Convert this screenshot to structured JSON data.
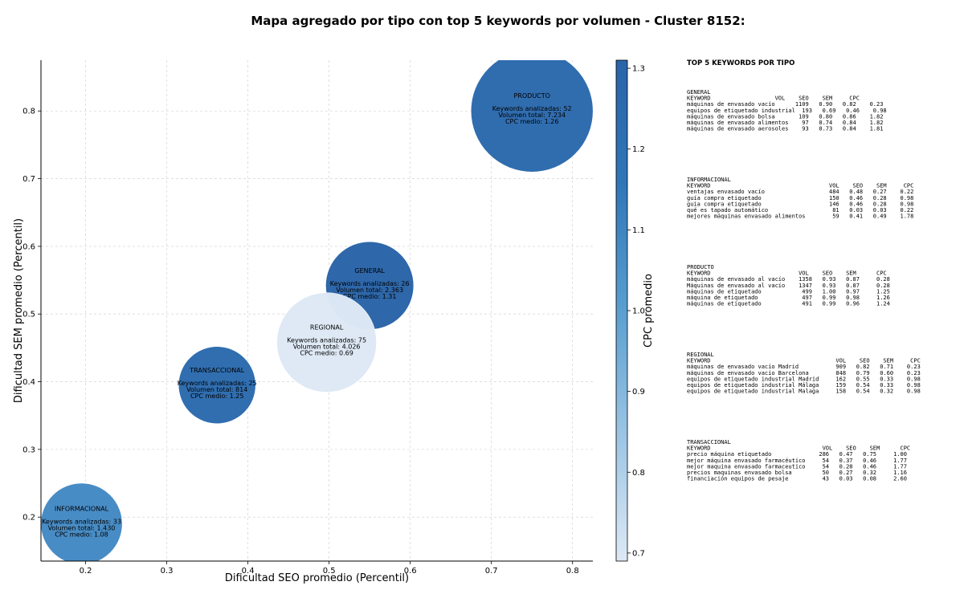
{
  "chart_data": {
    "type": "scatter",
    "title": "Mapa agregado por tipo con top 5 keywords por volumen - Cluster 8152:",
    "xlabel": "Dificultad SEO promedio (Percentil)",
    "ylabel": "Dificultad SEM promedio (Percentil)",
    "xlim": [
      0.145,
      0.825
    ],
    "ylim": [
      0.135,
      0.875
    ],
    "xticks": [
      0.2,
      0.3,
      0.4,
      0.5,
      0.6,
      0.7,
      0.8
    ],
    "yticks": [
      0.2,
      0.3,
      0.4,
      0.5,
      0.6,
      0.7,
      0.8
    ],
    "grid": true,
    "colorbar": {
      "label": "CPC promedio",
      "range": [
        0.69,
        1.31
      ],
      "ticks": [
        0.7,
        0.8,
        0.9,
        1.0,
        1.1,
        1.2,
        1.3
      ],
      "colors": [
        "#dde9f5",
        "#9cc5e4",
        "#5a9fd0",
        "#2f77b8",
        "#2a64a8"
      ]
    },
    "points": [
      {
        "name": "INFORMACIONAL",
        "x": 0.195,
        "y": 0.19,
        "keywords": "Keywords analizadas: 33",
        "volume": "Volumen total: 1.430",
        "cpc_text": "CPC medio: 1.08",
        "cpc": 1.08,
        "volume_value": 1430
      },
      {
        "name": "TRANSACCIONAL",
        "x": 0.362,
        "y": 0.395,
        "keywords": "Keywords analizadas: 25",
        "volume": "Volumen total: 814",
        "cpc_text": "CPC medio: 1.25",
        "cpc": 1.25,
        "volume_value": 814
      },
      {
        "name": "GENERAL",
        "x": 0.55,
        "y": 0.542,
        "keywords": "Keywords analizadas: 26",
        "volume": "Volumen total: 2.363",
        "cpc_text": "CPC medio: 1.31",
        "cpc": 1.31,
        "volume_value": 2363
      },
      {
        "name": "REGIONAL",
        "x": 0.497,
        "y": 0.458,
        "keywords": "Keywords analizadas: 75",
        "volume": "Volumen total: 4.026",
        "cpc_text": "CPC medio: 0.69",
        "cpc": 0.69,
        "volume_value": 4026
      },
      {
        "name": "PRODUCTO",
        "x": 0.75,
        "y": 0.8,
        "keywords": "Keywords analizadas: 52",
        "volume": "Volumen total: 7.234",
        "cpc_text": "CPC medio: 1.26",
        "cpc": 1.26,
        "volume_value": 7234
      }
    ]
  },
  "panel": {
    "title": "TOP 5 KEYWORDS POR TIPO",
    "groups": [
      {
        "name": "GENERAL",
        "header": "KEYWORD                   VOL    SEO    SEM     CPC",
        "rows": [
          "máquinas de envasado vacío      1109   0.90   0.82    0.23",
          "equipos de etiquetado industrial  193   0.69   0.46    0.98",
          "máquinas de envasado bolsa       109   0.80   0.86    1.82",
          "máquinas de envasado alimentos    97   0.74   0.84    1.82",
          "máquinas de envasado aerosoles    93   0.73   0.84    1.81"
        ]
      },
      {
        "name": "INFORMACIONAL",
        "header": "KEYWORD                                   VOL    SEO    SEM     CPC",
        "rows": [
          "ventajas envasado vacío                   484   0.48   0.27    0.22",
          "guía compra etiquetado                    150   0.46   0.28    0.98",
          "guia compra etiquetado                    146   0.46   0.28    0.98",
          "qué es tapado automático                   81   0.03   0.03    0.22",
          "mejores máquinas envasado alimentos        59   0.41   0.49    1.78"
        ]
      },
      {
        "name": "PRODUCTO",
        "header": "KEYWORD                          VOL    SEO    SEM      CPC",
        "rows": [
          "máquinas de envasado al vacío    1358   0.93   0.87     0.28",
          "Máquinas de envasado al vacío    1347   0.93   0.87     0.28",
          "máquinas de etiquetado            499   1.00   0.97     1.25",
          "máquina de etiquetado             497   0.99   0.98     1.26",
          "máquinas de etiquetado            491   0.99   0.96     1.24"
        ]
      },
      {
        "name": "REGIONAL",
        "header": "KEYWORD                                     VOL    SEO    SEM     CPC",
        "rows": [
          "máquinas de envasado vacío Madrid           909   0.82   0.71    0.23",
          "máquinas de envasado vacío Barcelona        848   0.79   0.60    0.23",
          "equipos de etiquetado industrial Madrid     162   0.55   0.33    0.98",
          "equipos de etiquetado industrial Málaga     159   0.54   0.33    0.98",
          "equipos de etiquetado industrial Malaga     158   0.54   0.32    0.98"
        ]
      },
      {
        "name": "TRANSACCIONAL",
        "header": "KEYWORD                                 VOL    SEO    SEM      CPC",
        "rows": [
          "precio máquina etiquetado              286   0.47   0.75     1.00",
          "mejor máquina envasado farmacéutico     54   0.37   0.46     1.77",
          "mejor maquina envasado farmaceutico     54   0.28   0.46     1.77",
          "precios maquinas envasado bolsa         50   0.27   0.32     1.16",
          "financiación equipos de pesaje          43   0.03   0.08     2.60"
        ]
      }
    ]
  }
}
